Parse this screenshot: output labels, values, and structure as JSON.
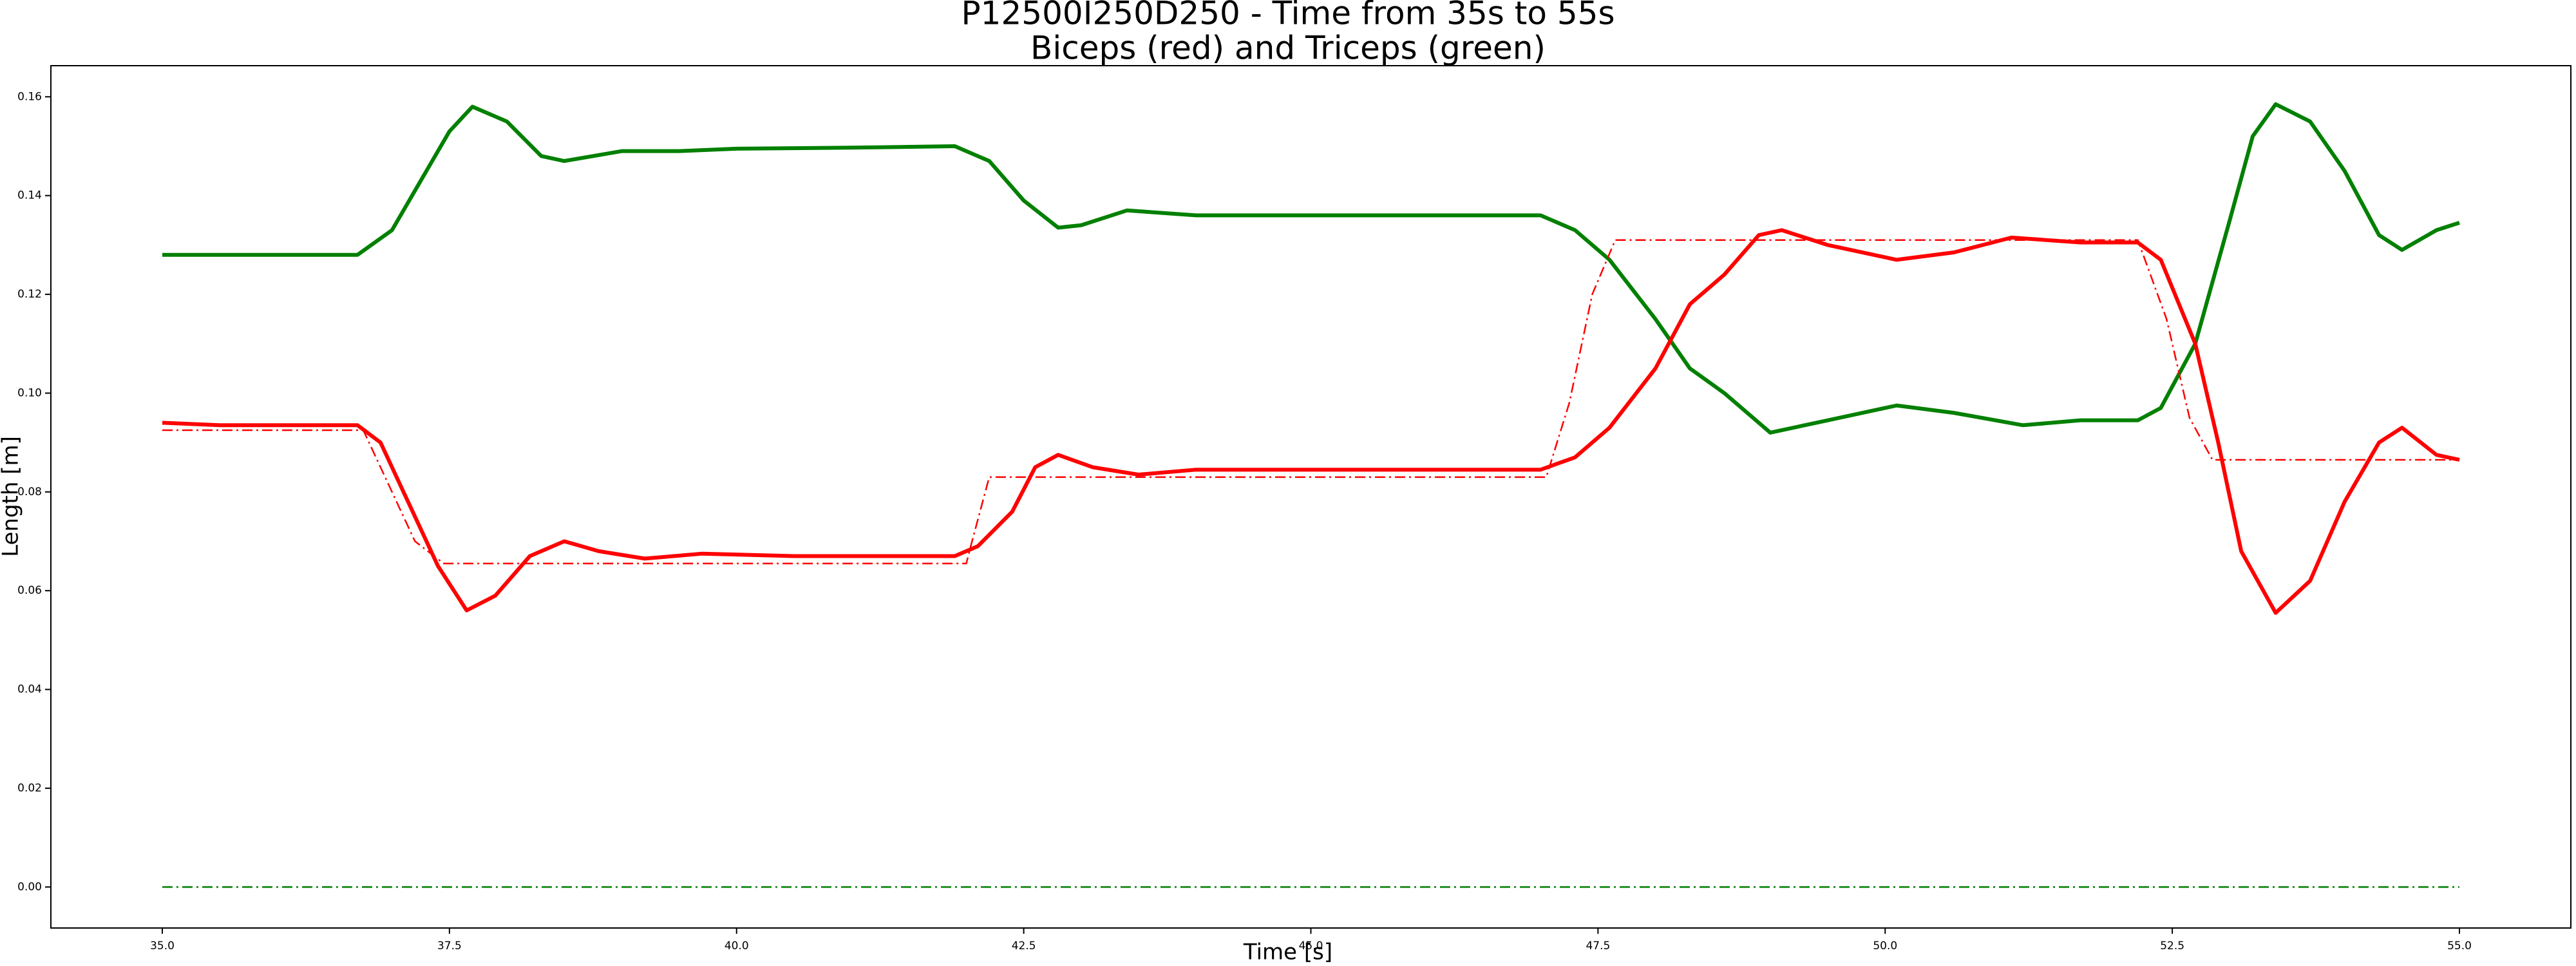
{
  "chart_data": {
    "type": "line",
    "title": "P12500I250D250 - Time from 35s to 55s",
    "subtitle": "Biceps (red) and Triceps (green)",
    "x_label": "Time [s]",
    "y_label": "Length [m]",
    "xlim": [
      34.03,
      55.97
    ],
    "ylim": [
      -0.0083,
      0.1663
    ],
    "xticks": [
      {
        "value": 35,
        "label": "35.0"
      },
      {
        "value": 37.5,
        "label": "37.5"
      },
      {
        "value": 40,
        "label": "40.0"
      },
      {
        "value": 42.5,
        "label": "42.5"
      },
      {
        "value": 45,
        "label": "45.0"
      },
      {
        "value": 47.5,
        "label": "47.5"
      },
      {
        "value": 50,
        "label": "50.0"
      },
      {
        "value": 52.5,
        "label": "52.5"
      },
      {
        "value": 55,
        "label": "55.0"
      }
    ],
    "yticks": [
      {
        "value": 0,
        "label": "0.00"
      },
      {
        "value": 0.02,
        "label": "0.02"
      },
      {
        "value": 0.04,
        "label": "0.04"
      },
      {
        "value": 0.06,
        "label": "0.06"
      },
      {
        "value": 0.08,
        "label": "0.08"
      },
      {
        "value": 0.1,
        "label": "0.10"
      },
      {
        "value": 0.12,
        "label": "0.12"
      },
      {
        "value": 0.14,
        "label": "0.14"
      },
      {
        "value": 0.16,
        "label": "0.16"
      }
    ],
    "grid": false,
    "series": [
      {
        "color": "#008000",
        "linestyle": "solid",
        "x": [
          35,
          36.7,
          37.0,
          37.25,
          37.5,
          37.7,
          38.0,
          38.3,
          38.5,
          39.0,
          39.5,
          40,
          41,
          41.9,
          42.2,
          42.5,
          42.8,
          43.0,
          43.4,
          44,
          45,
          46,
          47.0,
          47.3,
          47.6,
          48.0,
          48.3,
          48.6,
          49.0,
          49.5,
          50.1,
          50.6,
          51.2,
          51.7,
          52.2,
          52.4,
          52.7,
          53.0,
          53.2,
          53.4,
          53.7,
          54.0,
          54.3,
          54.5,
          54.8,
          55.0
        ],
        "values": [
          0.128,
          0.128,
          0.133,
          0.143,
          0.153,
          0.158,
          0.155,
          0.148,
          0.147,
          0.149,
          0.149,
          0.1495,
          0.1497,
          0.15,
          0.147,
          0.139,
          0.1335,
          0.134,
          0.137,
          0.136,
          0.136,
          0.136,
          0.136,
          0.133,
          0.127,
          0.115,
          0.105,
          0.1,
          0.092,
          0.0945,
          0.0975,
          0.096,
          0.0935,
          0.0945,
          0.0945,
          0.097,
          0.11,
          0.135,
          0.152,
          0.1585,
          0.155,
          0.145,
          0.132,
          0.129,
          0.133,
          0.1345
        ]
      },
      {
        "color": "#ff0000",
        "linestyle": "solid",
        "x": [
          35,
          35.5,
          36.7,
          36.9,
          37.1,
          37.4,
          37.65,
          37.9,
          38.2,
          38.5,
          38.8,
          39.2,
          39.7,
          40.5,
          41.9,
          42.1,
          42.4,
          42.6,
          42.8,
          43.1,
          43.5,
          44,
          45,
          47.0,
          47.3,
          47.6,
          48.0,
          48.3,
          48.6,
          48.9,
          49.1,
          49.5,
          50.1,
          50.6,
          51.1,
          51.7,
          52.2,
          52.4,
          52.7,
          52.9,
          53.1,
          53.4,
          53.7,
          54.0,
          54.3,
          54.5,
          54.8,
          55.0
        ],
        "values": [
          0.094,
          0.0935,
          0.0935,
          0.09,
          0.08,
          0.065,
          0.056,
          0.059,
          0.067,
          0.07,
          0.068,
          0.0665,
          0.0675,
          0.067,
          0.067,
          0.069,
          0.076,
          0.085,
          0.0875,
          0.085,
          0.0835,
          0.0845,
          0.0845,
          0.0845,
          0.087,
          0.093,
          0.105,
          0.118,
          0.124,
          0.132,
          0.133,
          0.13,
          0.127,
          0.1285,
          0.1315,
          0.1305,
          0.1305,
          0.127,
          0.11,
          0.09,
          0.068,
          0.0555,
          0.062,
          0.078,
          0.09,
          0.093,
          0.0875,
          0.0865
        ]
      },
      {
        "color": "#ff0000",
        "linestyle": "dashdot",
        "x": [
          35,
          36.75,
          37.0,
          37.2,
          37.45,
          42.0,
          42.05,
          42.2,
          47.05,
          47.25,
          47.45,
          47.65,
          52.2,
          52.45,
          52.65,
          52.85,
          55
        ],
        "values": [
          0.0925,
          0.0925,
          0.08,
          0.07,
          0.0655,
          0.0655,
          0.07,
          0.083,
          0.083,
          0.098,
          0.12,
          0.131,
          0.131,
          0.115,
          0.095,
          0.0865,
          0.0865
        ]
      },
      {
        "color": "#008000",
        "linestyle": "dashdot",
        "x": [
          35,
          55
        ],
        "values": [
          0,
          0
        ]
      }
    ]
  }
}
